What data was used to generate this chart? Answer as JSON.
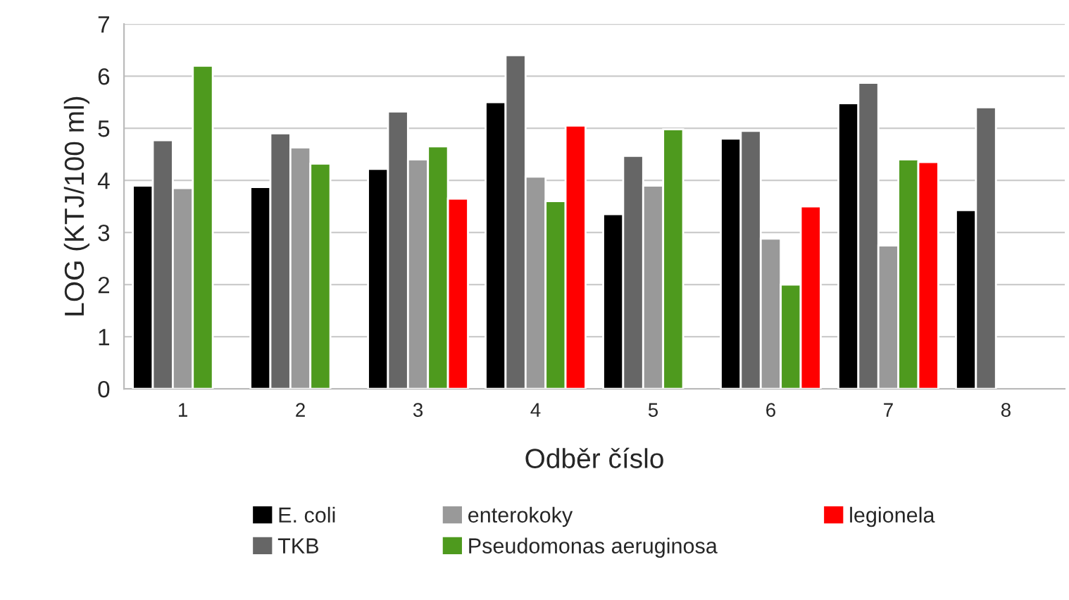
{
  "chart_data": {
    "type": "bar",
    "xlabel": "Odběr číslo",
    "ylabel": "LOG (KTJ/100 ml)",
    "categories": [
      "1",
      "2",
      "3",
      "4",
      "5",
      "6",
      "7",
      "8"
    ],
    "series": [
      {
        "name": "E. coli",
        "color": "#000000",
        "values": [
          3.9,
          3.87,
          4.22,
          5.5,
          3.35,
          4.8,
          5.48,
          3.43
        ]
      },
      {
        "name": "TKB",
        "color": "#666666",
        "values": [
          4.77,
          4.9,
          5.32,
          6.4,
          4.47,
          4.95,
          5.87,
          5.4
        ]
      },
      {
        "name": "enterokoky",
        "color": "#999999",
        "values": [
          3.85,
          4.63,
          4.4,
          4.07,
          3.9,
          2.88,
          2.75,
          null
        ]
      },
      {
        "name": "Pseudomonas aeruginosa",
        "color": "#4e9a1e",
        "values": [
          6.2,
          4.32,
          4.65,
          3.6,
          4.98,
          2.0,
          4.4,
          null
        ]
      },
      {
        "name": "legionela",
        "color": "#ff0000",
        "values": [
          null,
          null,
          3.65,
          5.05,
          null,
          3.5,
          4.35,
          null
        ]
      }
    ],
    "ylim": [
      0,
      7
    ],
    "yticks": [
      0,
      1,
      2,
      3,
      4,
      5,
      6,
      7
    ],
    "grid": "y",
    "legend": "bottom"
  }
}
